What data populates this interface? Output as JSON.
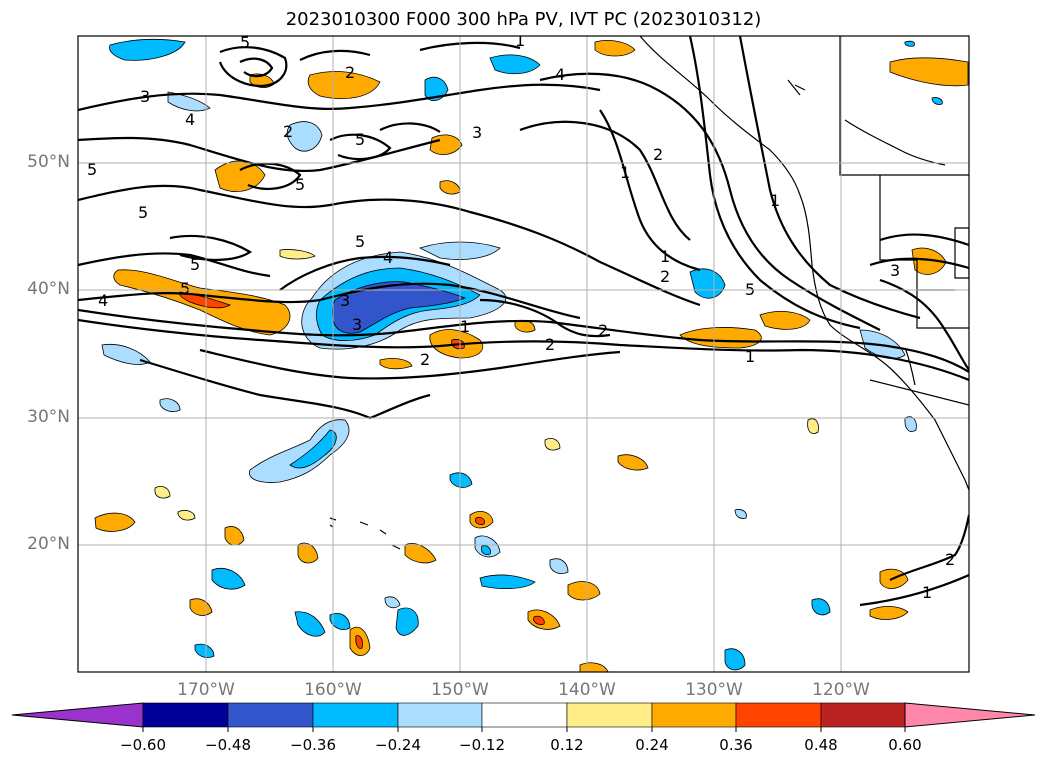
{
  "title": "2023010300 F000 300 hPa PV, IVT PC (2023010312)",
  "lat_labels": [
    "50°N",
    "40°N",
    "30°N",
    "20°N"
  ],
  "lon_labels": [
    "170°W",
    "160°W",
    "150°W",
    "140°W",
    "130°W",
    "120°W"
  ],
  "contour_labels": [
    "1",
    "2",
    "3",
    "4",
    "5"
  ],
  "colorbar": {
    "colors": [
      "#9933cc",
      "#000099",
      "#3355cc",
      "#00bbff",
      "#aaddff",
      "#ffffff",
      "#ffee88",
      "#ffaa00",
      "#ff4400",
      "#bb2222",
      "#ff88aa"
    ],
    "tick_labels": [
      "−0.60",
      "−0.48",
      "−0.36",
      "−0.24",
      "−0.12",
      "0.12",
      "0.24",
      "0.36",
      "0.48",
      "0.60"
    ]
  }
}
